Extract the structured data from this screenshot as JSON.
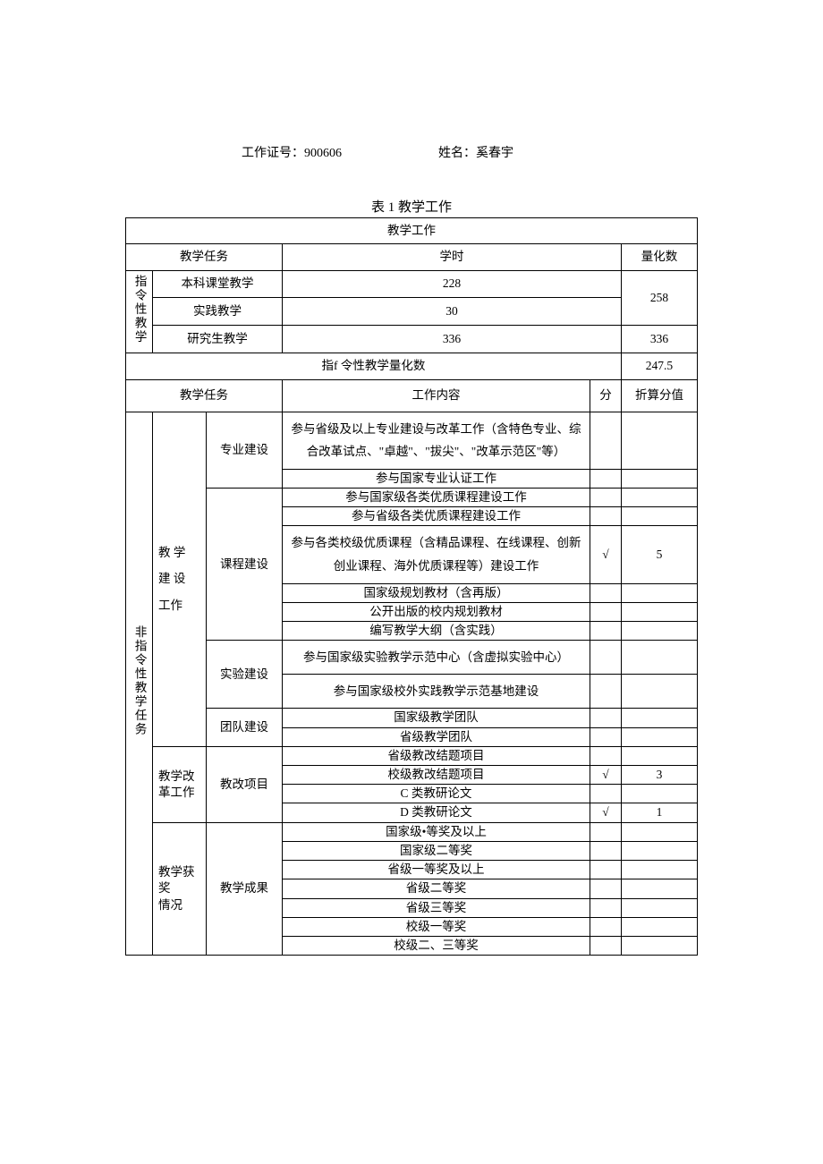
{
  "header": {
    "id_label": "工作证号：",
    "id_value": "900606",
    "name_label": "姓名：",
    "name_value": "奚春宇"
  },
  "caption": "表 1 教学工作",
  "top_section": {
    "title": "教学工作",
    "col_task": "教学任务",
    "col_hours": "学时",
    "col_quant": "量化数",
    "vert_label": "指令性教学",
    "rows": [
      {
        "task": "本科课堂教学",
        "hours": "228",
        "quant": "258"
      },
      {
        "task": "实践教学",
        "hours": "30"
      },
      {
        "task": "研究生教学",
        "hours": "336",
        "quant": "336"
      }
    ],
    "subtotal_label": "指f 令性教学量化数",
    "subtotal_value": "247.5"
  },
  "mid_headers": {
    "task": "教学任务",
    "content": "工作内容",
    "score": "分",
    "value": "折算分值"
  },
  "non_directive": {
    "vert_label": "非指令性教学任务",
    "groups": [
      {
        "cat": "教 学建 设工作",
        "subs": [
          {
            "name": "专业建设",
            "items": [
              {
                "text": "参与省级及以上专业建设与改革工作（含特色专业、综合改革试点、\"卓越\"、\"拔尖\"、\"改革示范区\"等）",
                "multi": true
              },
              {
                "text": "参与国家专业认证工作"
              }
            ]
          },
          {
            "name": "课程建设",
            "items": [
              {
                "text": "参与国家级各类优质课程建设工作"
              },
              {
                "text": "参与省级各类优质课程建设工作"
              },
              {
                "text": "参与各类校级优质课程（含精品课程、在线课程、创新创业课程、海外优质课程等）建设工作",
                "multi": true,
                "score": "√",
                "value": "5"
              },
              {
                "text": "国家级规划教材（含再版）"
              },
              {
                "text": "公开出版的校内规划教材"
              },
              {
                "text": "编写教学大纲（含实践）"
              }
            ]
          },
          {
            "name": "实验建设",
            "items": [
              {
                "text": "参与国家级实验教学示范中心（含虚拟实验中心）",
                "tall": true
              },
              {
                "text": "参与国家级校外实践教学示范基地建设",
                "tall": true
              }
            ]
          },
          {
            "name": "团队建设",
            "items": [
              {
                "text": "国家级教学团队"
              },
              {
                "text": "省级教学团队"
              }
            ]
          }
        ]
      },
      {
        "cat": "教学改革工作",
        "subs": [
          {
            "name": "教改项目",
            "items": [
              {
                "text": "省级教改结题项目"
              },
              {
                "text": "校级教改结题项目",
                "score": "√",
                "value": "3"
              },
              {
                "text": "C 类教研论文"
              },
              {
                "text": "D 类教研论文",
                "score": "√",
                "value": "1"
              }
            ]
          }
        ]
      },
      {
        "cat": "教学获奖情况",
        "cat_align_top": true,
        "subs": [
          {
            "name": "教学成果",
            "items": [
              {
                "text": "国家级•等奖及以上"
              },
              {
                "text": "国家级二等奖"
              },
              {
                "text": "省级一等奖及以上"
              },
              {
                "text": "省级二等奖"
              },
              {
                "text": "省级三等奖"
              },
              {
                "text": "校级一等奖"
              },
              {
                "text": "校级二、三等奖"
              }
            ]
          }
        ]
      }
    ]
  }
}
